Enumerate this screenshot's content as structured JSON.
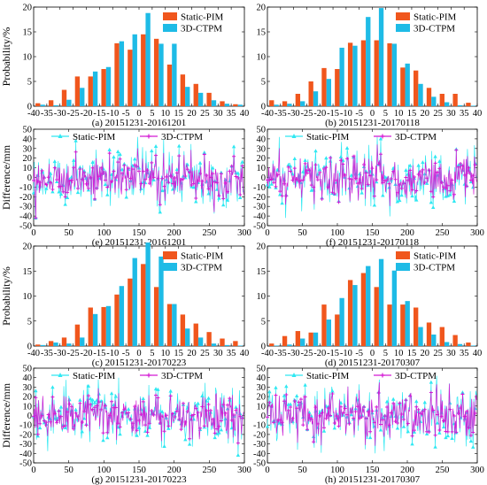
{
  "chart_data": [
    {
      "id": "a",
      "type": "bar",
      "caption": "(a) 20151231-20161201",
      "ylabel": "Probability/%",
      "ylim": [
        0,
        20
      ],
      "yticks": [
        0,
        5,
        10,
        15,
        20
      ],
      "xlim": [
        -40,
        40
      ],
      "xticks": [
        -40,
        -35,
        -30,
        -25,
        -20,
        -15,
        -10,
        -5,
        0,
        5,
        10,
        15,
        20,
        25,
        30,
        35,
        40
      ],
      "xtick_labels": [
        "-40",
        "-35",
        "-30",
        "-25",
        "-20",
        "-15",
        "-10",
        "-5",
        "0",
        "5",
        "10",
        "15",
        "20",
        "25",
        "30",
        "35",
        "40"
      ],
      "legend_position": "top-right",
      "categories": [
        -37.5,
        -32.5,
        -27.5,
        -22.5,
        -17.5,
        -12.5,
        -7.5,
        -2.5,
        2.5,
        7.5,
        12.5,
        17.5,
        22.5,
        27.5,
        32.5,
        37.5
      ],
      "series": [
        {
          "name": "Static-PIM",
          "color": "#f0561d",
          "values": [
            0.6,
            1.2,
            3.3,
            6.0,
            6.0,
            7.5,
            12.7,
            11.4,
            14.5,
            13.6,
            8.4,
            6.4,
            4.5,
            2.7,
            1.0,
            0.4
          ]
        },
        {
          "name": "3D-CTPM",
          "color": "#1ebbe6",
          "values": [
            0.3,
            0.2,
            1.3,
            3.7,
            7.0,
            7.9,
            13.1,
            14.5,
            18.8,
            12.6,
            12.6,
            3.9,
            2.7,
            1.2,
            0.5,
            0.3
          ]
        }
      ]
    },
    {
      "id": "b",
      "type": "bar",
      "caption": "(b) 20151231-20170118",
      "ylabel": "",
      "ylim": [
        0,
        20
      ],
      "yticks": [
        0,
        5,
        10,
        15,
        20
      ],
      "xlim": [
        -40,
        40
      ],
      "xticks": [
        -40,
        -35,
        -30,
        -25,
        -20,
        -15,
        -10,
        -5,
        0,
        5,
        10,
        15,
        20,
        25,
        30,
        35,
        40
      ],
      "xtick_labels": [
        "-40",
        "-35",
        "-30",
        "-25",
        "-20",
        "-15",
        "-10",
        "-5",
        "0",
        "5",
        "10",
        "15",
        "20",
        "25",
        "30",
        "35",
        "40"
      ],
      "legend_position": "top-right",
      "categories": [
        -37.5,
        -32.5,
        -27.5,
        -22.5,
        -17.5,
        -12.5,
        -7.5,
        -2.5,
        2.5,
        7.5,
        12.5,
        17.5,
        22.5,
        27.5,
        32.5,
        37.5
      ],
      "series": [
        {
          "name": "Static-PIM",
          "color": "#f0561d",
          "values": [
            1.2,
            1.0,
            2.5,
            5.0,
            7.7,
            7.5,
            12.8,
            13.3,
            13.3,
            12.7,
            7.8,
            7.2,
            3.7,
            2.5,
            2.5,
            0.7
          ]
        },
        {
          "name": "3D-CTPM",
          "color": "#1ebbe6",
          "values": [
            0.3,
            0.5,
            1.0,
            3.0,
            5.5,
            11.8,
            12.2,
            18.0,
            19.8,
            12.6,
            8.6,
            4.5,
            1.9,
            0.8,
            0.2,
            0.1
          ]
        }
      ]
    },
    {
      "id": "e",
      "type": "line",
      "caption": "(e) 20151231-20161201",
      "ylabel": "Difference/mm",
      "ylim": [
        -50,
        50
      ],
      "yticks": [
        -50,
        -40,
        -30,
        -20,
        -10,
        0,
        10,
        20,
        30,
        40,
        50
      ],
      "xlim": [
        0,
        300
      ],
      "xticks": [
        0,
        50,
        100,
        150,
        200,
        250,
        300
      ],
      "legend_position": "top-center",
      "series": [
        {
          "name": "Static-PIM",
          "color": "#2fe8f2",
          "marker": "triangle",
          "amplitude": 15
        },
        {
          "name": "3D-CTPM",
          "color": "#d41ad4",
          "marker": "star",
          "amplitude": 11
        }
      ]
    },
    {
      "id": "f",
      "type": "line",
      "caption": "(f) 20151231-20170118",
      "ylabel": "",
      "ylim": [
        -50,
        50
      ],
      "yticks": [
        -50,
        -40,
        -30,
        -20,
        -10,
        0,
        10,
        20,
        30,
        40,
        50
      ],
      "xlim": [
        0,
        300
      ],
      "xticks": [
        0,
        50,
        100,
        150,
        200,
        250,
        300
      ],
      "legend_position": "top-center",
      "series": [
        {
          "name": "Static-PIM",
          "color": "#2fe8f2",
          "marker": "triangle",
          "amplitude": 15
        },
        {
          "name": "3D-CTPM",
          "color": "#d41ad4",
          "marker": "star",
          "amplitude": 11
        }
      ]
    },
    {
      "id": "c",
      "type": "bar",
      "caption": "(c) 20151231-20170223",
      "ylabel": "Probability/%",
      "ylim": [
        0,
        20
      ],
      "yticks": [
        0,
        5,
        10,
        15,
        20
      ],
      "xlim": [
        -40,
        40
      ],
      "xticks": [
        -40,
        -35,
        -30,
        -25,
        -20,
        -15,
        -10,
        -5,
        0,
        5,
        10,
        15,
        20,
        25,
        30,
        35,
        40
      ],
      "xtick_labels": [
        "-40",
        "-35",
        "-30",
        "-25",
        "-20",
        "-15",
        "-10",
        "-5",
        "0",
        "5",
        "10",
        "15",
        "20",
        "25",
        "30",
        "35",
        "40"
      ],
      "legend_position": "top-right",
      "categories": [
        -37.5,
        -32.5,
        -27.5,
        -22.5,
        -17.5,
        -12.5,
        -7.5,
        -2.5,
        2.5,
        7.5,
        12.5,
        17.5,
        22.5,
        27.5,
        32.5,
        37.5
      ],
      "series": [
        {
          "name": "Static-PIM",
          "color": "#f0561d",
          "values": [
            0.3,
            1.0,
            1.7,
            4.3,
            7.7,
            7.8,
            10.3,
            13.5,
            16.4,
            11.8,
            8.4,
            6.3,
            4.5,
            2.8,
            1.5,
            1.0
          ]
        },
        {
          "name": "3D-CTPM",
          "color": "#1ebbe6",
          "values": [
            0.2,
            0.7,
            0.5,
            1.7,
            6.4,
            8.0,
            12.0,
            17.6,
            20.7,
            17.9,
            8.4,
            3.5,
            1.7,
            0.5,
            0.2,
            0.1
          ]
        }
      ]
    },
    {
      "id": "d",
      "type": "bar",
      "caption": "(d) 20151231-20170307",
      "ylabel": "",
      "ylim": [
        0,
        20
      ],
      "yticks": [
        0,
        5,
        10,
        15,
        20
      ],
      "xlim": [
        -40,
        40
      ],
      "xticks": [
        -40,
        -35,
        -30,
        -25,
        -20,
        -15,
        -10,
        -5,
        0,
        5,
        10,
        15,
        20,
        25,
        30,
        35,
        40
      ],
      "xtick_labels": [
        "-40",
        "-35",
        "-30",
        "-25",
        "-20",
        "-15",
        "-10",
        "-5",
        "0",
        "5",
        "10",
        "15",
        "20",
        "25",
        "30",
        "35",
        "40"
      ],
      "legend_position": "top-right",
      "categories": [
        -37.5,
        -32.5,
        -27.5,
        -22.5,
        -17.5,
        -12.5,
        -7.5,
        -2.5,
        2.5,
        7.5,
        12.5,
        17.5,
        22.5,
        27.5,
        32.5,
        37.5
      ],
      "series": [
        {
          "name": "Static-PIM",
          "color": "#f0561d",
          "values": [
            0.5,
            2.0,
            3.0,
            2.7,
            8.3,
            6.3,
            13.2,
            14.6,
            11.8,
            8.3,
            8.3,
            7.7,
            4.7,
            3.8,
            2.2,
            0.7
          ]
        },
        {
          "name": "3D-CTPM",
          "color": "#1ebbe6",
          "values": [
            0.1,
            0.3,
            1.5,
            2.7,
            5.3,
            9.6,
            12.2,
            16.0,
            17.4,
            15.1,
            9.0,
            3.8,
            2.3,
            0.8,
            0.4,
            0.1
          ]
        }
      ]
    },
    {
      "id": "g",
      "type": "line",
      "caption": "(g) 20151231-20170223",
      "ylabel": "Difference/mm",
      "ylim": [
        -50,
        50
      ],
      "yticks": [
        -50,
        -40,
        -30,
        -20,
        -10,
        0,
        10,
        20,
        30,
        40,
        50
      ],
      "xlim": [
        0,
        300
      ],
      "xticks": [
        0,
        50,
        100,
        150,
        200,
        250,
        300
      ],
      "legend_position": "top-center",
      "series": [
        {
          "name": "Static-PIM",
          "color": "#2fe8f2",
          "marker": "triangle",
          "amplitude": 15
        },
        {
          "name": "3D-CTPM",
          "color": "#d41ad4",
          "marker": "star",
          "amplitude": 11
        }
      ]
    },
    {
      "id": "h",
      "type": "line",
      "caption": "(h) 20151231-20170307",
      "ylabel": "",
      "ylim": [
        -50,
        50
      ],
      "yticks": [
        -50,
        -40,
        -30,
        -20,
        -10,
        0,
        10,
        20,
        30,
        40,
        50
      ],
      "xlim": [
        0,
        300
      ],
      "xticks": [
        0,
        50,
        100,
        150,
        200,
        250,
        300
      ],
      "legend_position": "top-center",
      "series": [
        {
          "name": "Static-PIM",
          "color": "#2fe8f2",
          "marker": "triangle",
          "amplitude": 15
        },
        {
          "name": "3D-CTPM",
          "color": "#d41ad4",
          "marker": "star",
          "amplitude": 12
        }
      ]
    }
  ]
}
